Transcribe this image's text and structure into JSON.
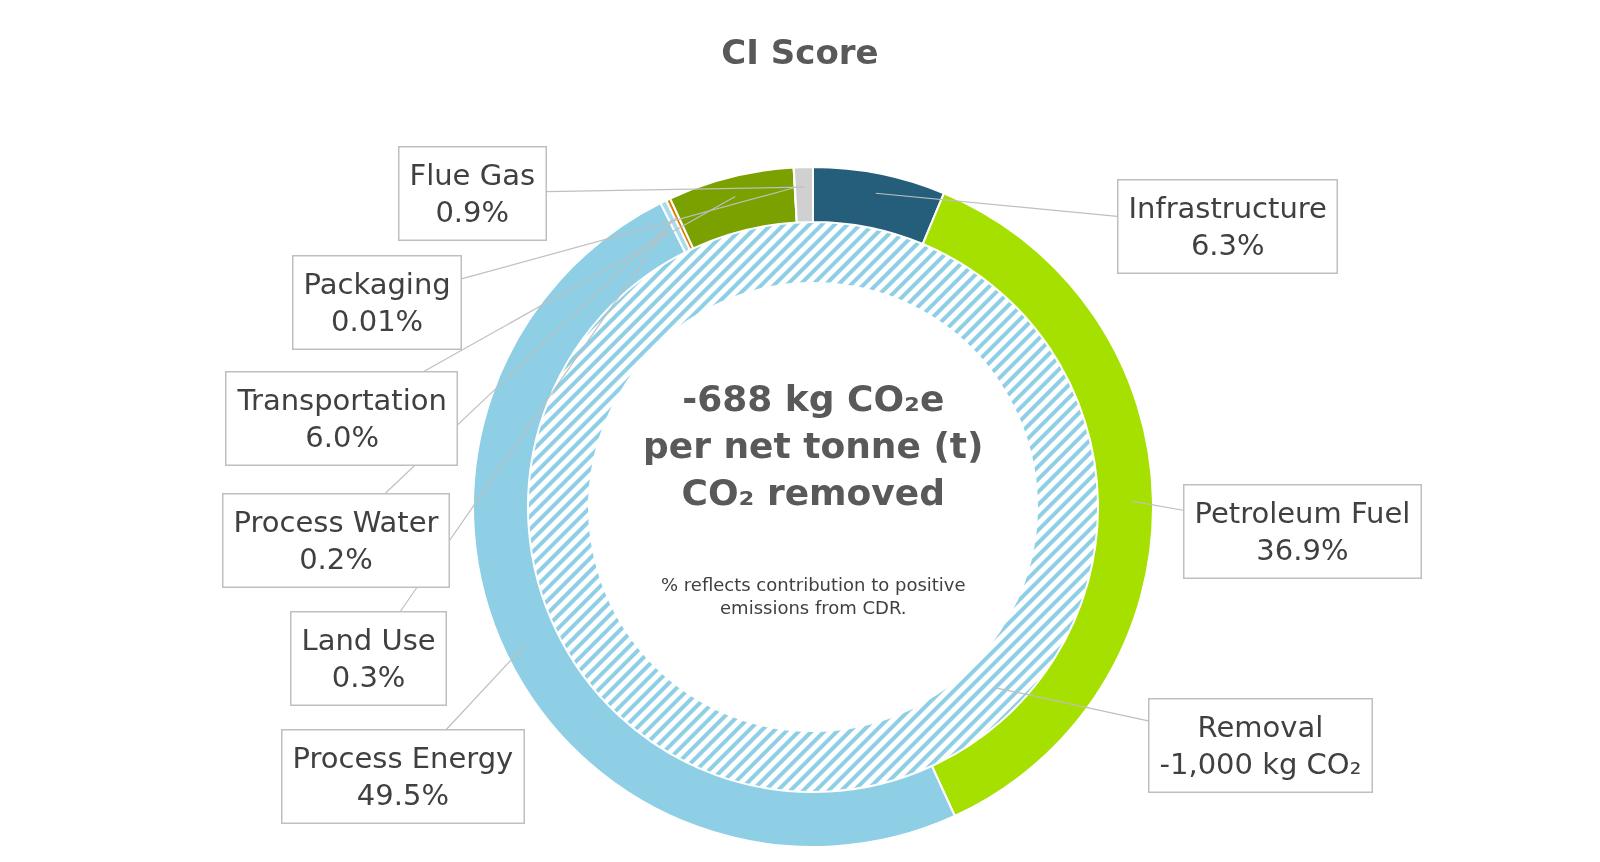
{
  "chart_data": {
    "type": "donut",
    "title": "CI Score",
    "legend": false,
    "categories": [
      "Infrastructure",
      "Petroleum Fuel",
      "Process Energy",
      "Land Use",
      "Process Water",
      "Transportation",
      "Packaging",
      "Flue Gas"
    ],
    "values": [
      6.3,
      36.9,
      49.5,
      0.3,
      0.2,
      6.0,
      0.01,
      0.9
    ],
    "value_labels": [
      "6.3%",
      "36.9%",
      "49.5%",
      "0.3%",
      "0.2%",
      "6.0%",
      "0.01%",
      "0.9%"
    ],
    "colors": [
      "#245e7a",
      "#a5e000",
      "#8ecfe6",
      "#a9dcef",
      "#e07b00",
      "#7aa100",
      "#c00000",
      "#d0d0d0"
    ],
    "annotations": [
      "-688 kg CO₂e\nper net tonne (t)\nCO₂ removed",
      "% reflects contribution to positive\nemissions from CDR.",
      "Removal\n-1,000 kg CO₂"
    ]
  }
}
